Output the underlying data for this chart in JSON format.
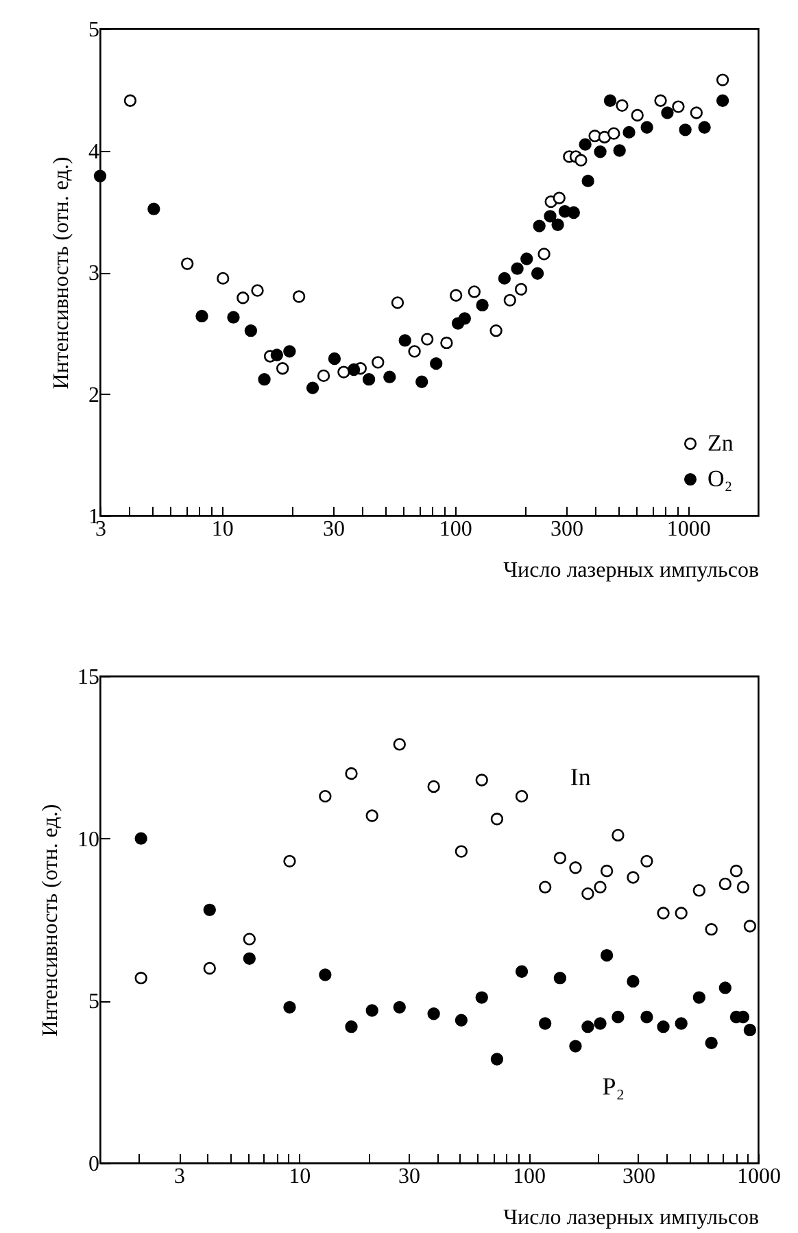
{
  "chart_data": [
    {
      "type": "scatter",
      "xlabel": "Число лазерных импульсов",
      "ylabel": "Интенсивность (отн. ед.)",
      "log": "x",
      "marker": "circle",
      "legend": "bottom right",
      "xlim": [
        3,
        2000
      ],
      "xticks": [
        3,
        {
          "value": 4,
          "label": null
        },
        {
          "value": 5,
          "label": null
        },
        {
          "value": 6,
          "label": null
        },
        {
          "value": 7,
          "label": null
        },
        {
          "value": 8,
          "label": null
        },
        {
          "value": 9,
          "label": null
        },
        10,
        {
          "value": 20,
          "label": null
        },
        30,
        {
          "value": 40,
          "label": null
        },
        {
          "value": 50,
          "label": null
        },
        {
          "value": 60,
          "label": null
        },
        {
          "value": 70,
          "label": null
        },
        {
          "value": 80,
          "label": null
        },
        {
          "value": 90,
          "label": null
        },
        100,
        {
          "value": 200,
          "label": null
        },
        300,
        {
          "value": 400,
          "label": null
        },
        {
          "value": 500,
          "label": null
        },
        {
          "value": 600,
          "label": null
        },
        {
          "value": 700,
          "label": null
        },
        {
          "value": 800,
          "label": null
        },
        {
          "value": 900,
          "label": null
        },
        1000
      ],
      "ylim": [
        1,
        5
      ],
      "yticks": [
        1,
        2,
        3,
        4,
        5
      ],
      "series": [
        {
          "name": "Zn",
          "color": "#ffffff",
          "x": [
            4.04,
            7.1,
            10.1,
            12.3,
            14.2,
            16.1,
            18.2,
            21.4,
            27.3,
            33.3,
            39.3,
            46.7,
            56.7,
            67,
            76,
            92,
            101,
            121,
            150,
            172,
            192,
            241,
            258,
            280,
            309,
            330,
            347,
            398,
            438,
            480,
            521,
            606,
            762,
            908,
            1086,
            1407
          ],
          "values": [
            4.41,
            3.07,
            2.95,
            2.79,
            2.85,
            2.31,
            2.21,
            2.8,
            2.15,
            2.18,
            2.21,
            2.26,
            2.75,
            2.35,
            2.45,
            2.42,
            2.81,
            2.84,
            2.52,
            2.77,
            2.86,
            3.15,
            3.58,
            3.61,
            3.95,
            3.95,
            3.92,
            4.12,
            4.11,
            4.14,
            4.37,
            4.29,
            4.41,
            4.36,
            4.31,
            4.58
          ]
        },
        {
          "name": "O₂",
          "color": "#000000",
          "x": [
            3.0,
            5.1,
            8.2,
            11.2,
            13.3,
            15.2,
            17.2,
            19.5,
            24.5,
            30.4,
            36.8,
            42.7,
            52.4,
            61,
            72,
            83,
            103,
            110,
            131,
            163,
            185,
            203,
            226,
            230,
            256,
            276,
            296,
            323,
            362,
            372,
            420,
            463,
            508,
            558,
            666,
            815,
            973,
            1176,
            1407
          ],
          "values": [
            3.79,
            3.52,
            2.64,
            2.63,
            2.52,
            2.12,
            2.32,
            2.35,
            2.05,
            2.29,
            2.2,
            2.12,
            2.14,
            2.44,
            2.1,
            2.25,
            2.58,
            2.62,
            2.73,
            2.95,
            3.03,
            3.11,
            2.99,
            3.38,
            3.46,
            3.39,
            3.5,
            3.49,
            4.05,
            3.75,
            3.99,
            4.41,
            4.0,
            4.15,
            4.19,
            4.31,
            4.17,
            4.19,
            4.41
          ]
        }
      ]
    },
    {
      "type": "scatter",
      "xlabel": "Число лазерных импульсов",
      "ylabel": "Интенсивность (отн. ед.)",
      "log": "x",
      "marker": "circle",
      "xlim": [
        1.36,
        1000
      ],
      "xticks": [
        {
          "value": 2,
          "label": null
        },
        3,
        {
          "value": 4,
          "label": null
        },
        {
          "value": 5,
          "label": null
        },
        {
          "value": 6,
          "label": null
        },
        {
          "value": 7,
          "label": null
        },
        {
          "value": 8,
          "label": null
        },
        {
          "value": 9,
          "label": null
        },
        10,
        {
          "value": 20,
          "label": null
        },
        30,
        {
          "value": 40,
          "label": null
        },
        {
          "value": 50,
          "label": null
        },
        {
          "value": 60,
          "label": null
        },
        {
          "value": 70,
          "label": null
        },
        {
          "value": 80,
          "label": null
        },
        {
          "value": 90,
          "label": null
        },
        100,
        {
          "value": 200,
          "label": null
        },
        300,
        {
          "value": 400,
          "label": null
        },
        {
          "value": 500,
          "label": null
        },
        {
          "value": 600,
          "label": null
        },
        {
          "value": 700,
          "label": null
        },
        {
          "value": 800,
          "label": null
        },
        {
          "value": 900,
          "label": null
        },
        1000
      ],
      "ylim": [
        0,
        15
      ],
      "yticks": [
        0,
        5,
        10,
        15
      ],
      "x": [
        2.05,
        4.08,
        6.08,
        9.1,
        13.0,
        16.9,
        20.8,
        27.4,
        38.6,
        50.9,
        62.5,
        72.8,
        93.3,
        118,
        137,
        160,
        181,
        205,
        219,
        245,
        285,
        327,
        386,
        462,
        553,
        625,
        718,
        802,
        859,
        920
      ],
      "annotations": [
        "In",
        "P₂"
      ],
      "series": [
        {
          "color": "#ffffff",
          "values": [
            5.7,
            6.0,
            6.9,
            9.3,
            11.3,
            12.0,
            10.7,
            12.9,
            11.6,
            9.6,
            11.8,
            10.6,
            11.3,
            8.5,
            9.4,
            9.1,
            8.3,
            8.5,
            9.0,
            10.1,
            8.8,
            9.3,
            7.7,
            7.7,
            8.4,
            7.2,
            8.6,
            9.0,
            8.5,
            7.3
          ]
        },
        {
          "color": "#000000",
          "values": [
            10.0,
            7.8,
            6.3,
            4.8,
            5.8,
            4.2,
            4.7,
            4.8,
            4.6,
            4.4,
            5.1,
            3.2,
            5.9,
            4.3,
            5.7,
            3.6,
            4.2,
            4.3,
            6.4,
            4.5,
            5.6,
            4.5,
            4.2,
            4.3,
            5.1,
            3.7,
            5.4,
            4.5,
            4.5,
            4.1
          ]
        }
      ]
    }
  ]
}
